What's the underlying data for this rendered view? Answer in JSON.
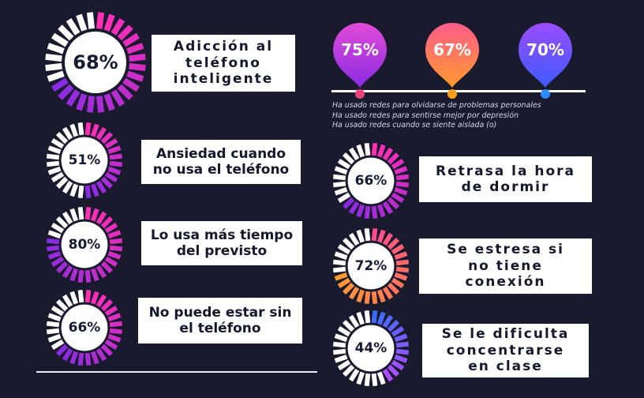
{
  "stats_left": [
    {
      "percent": "68%",
      "value": 68,
      "label": "Adicción al\nteléfono\ninteligente"
    },
    {
      "percent": "51%",
      "value": 51,
      "label": "Ansiedad cuando\nno usa el teléfono"
    },
    {
      "percent": "80%",
      "value": 80,
      "label": "Lo usa más tiempo\ndel previsto"
    },
    {
      "percent": "66%",
      "value": 66,
      "label": "No puede estar sin\nel teléfono"
    }
  ],
  "stats_right": [
    {
      "percent": "66%",
      "value": 66,
      "label": "Retrasa la hora\nde dormir"
    },
    {
      "percent": "72%",
      "value": 72,
      "label": "Se estresa si\nno tiene\nconexión"
    },
    {
      "percent": "44%",
      "value": 44,
      "label": "Se le dificulta\nconcentrarse\nen clase"
    }
  ],
  "pins": [
    {
      "percent": "75%",
      "value": 75,
      "color_top": "#e24bd8",
      "color_bottom": "#8a2be2",
      "dot_color": "#e8427a"
    },
    {
      "percent": "67%",
      "value": 67,
      "color_top": "#ff5c8a",
      "color_bottom": "#ff9a2e",
      "dot_color": "#ff9f1c"
    },
    {
      "percent": "70%",
      "value": 70,
      "color_top": "#9b4dff",
      "color_bottom": "#3d5bff",
      "dot_color": "#2f8bff"
    }
  ],
  "legend": [
    "Ha usado redes para olvidarse de problemas personales",
    "Ha usado redes para sentirse mejor por depresión",
    "Ha usado redes cuando se siente aislada (o)"
  ],
  "colors": {
    "background": "#191a2e",
    "ring_pink": "#e83ad2",
    "ring_purple": "#9a33e8",
    "ring_orange": "#ff8a2a",
    "ring_blue": "#3f6dff"
  }
}
